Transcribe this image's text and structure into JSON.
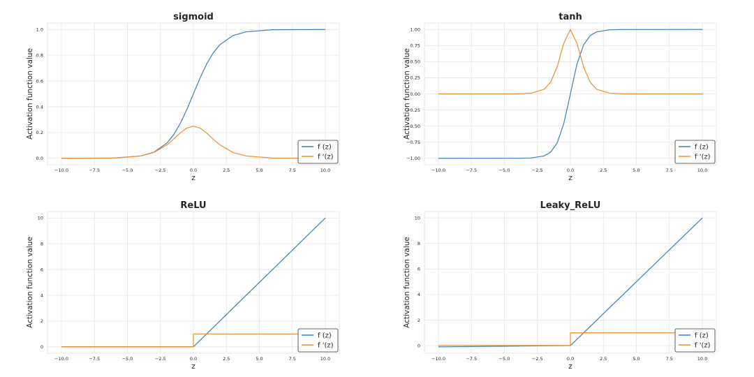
{
  "colors": {
    "f": "#3b7fbf",
    "fprime": "#f28c28",
    "grid": "#e4e4e4",
    "text": "#262626"
  },
  "chart_data": [
    {
      "type": "line",
      "title": "sigmoid",
      "xlabel": "z",
      "ylabel": "Activation function value",
      "xlim": [
        -10,
        10
      ],
      "ylim": [
        -0.05,
        1.05
      ],
      "xticks": [
        -10,
        -7.5,
        -5,
        -2.5,
        0,
        2.5,
        5,
        7.5,
        10
      ],
      "xtick_labels": [
        "−10.0",
        "−7.5",
        "−5.0",
        "−2.5",
        "0.0",
        "2.5",
        "5.0",
        "7.5",
        "10.0"
      ],
      "yticks": [
        0,
        0.2,
        0.4,
        0.6,
        0.8,
        1.0
      ],
      "ytick_labels": [
        "0.0",
        "0.2",
        "0.4",
        "0.6",
        "0.8",
        "1.0"
      ],
      "grid": true,
      "legend_position": "lower-right",
      "series": [
        {
          "name": "f (z)",
          "color": "#3b7fbf",
          "x": [
            -10,
            -6,
            -4,
            -3,
            -2,
            -1.5,
            -1,
            -0.5,
            0,
            0.5,
            1,
            1.5,
            2,
            3,
            4,
            6,
            10
          ],
          "y": [
            0.0,
            0.002,
            0.018,
            0.047,
            0.119,
            0.182,
            0.269,
            0.378,
            0.5,
            0.622,
            0.731,
            0.818,
            0.881,
            0.953,
            0.982,
            0.998,
            1.0
          ]
        },
        {
          "name": "f '(z)",
          "color": "#f28c28",
          "x": [
            -10,
            -6,
            -4,
            -3,
            -2,
            -1.5,
            -1,
            -0.5,
            0,
            0.5,
            1,
            1.5,
            2,
            3,
            4,
            6,
            10
          ],
          "y": [
            0.0,
            0.002,
            0.018,
            0.045,
            0.105,
            0.149,
            0.197,
            0.235,
            0.25,
            0.235,
            0.197,
            0.149,
            0.105,
            0.045,
            0.018,
            0.002,
            0.0
          ]
        }
      ]
    },
    {
      "type": "line",
      "title": "tanh",
      "xlabel": "z",
      "ylabel": "Activation function value",
      "xlim": [
        -10,
        10
      ],
      "ylim": [
        -1.1,
        1.1
      ],
      "xticks": [
        -10,
        -7.5,
        -5,
        -2.5,
        0,
        2.5,
        5,
        7.5,
        10
      ],
      "xtick_labels": [
        "−10.0",
        "−7.5",
        "−5.0",
        "−2.5",
        "0.0",
        "2.5",
        "5.0",
        "7.5",
        "10.0"
      ],
      "yticks": [
        -1.0,
        -0.75,
        -0.5,
        -0.25,
        0,
        0.25,
        0.5,
        0.75,
        1.0
      ],
      "ytick_labels": [
        "−1.00",
        "−0.75",
        "−0.50",
        "−0.25",
        "0.00",
        "0.25",
        "0.50",
        "0.75",
        "1.00"
      ],
      "grid": true,
      "legend_position": "lower-right",
      "series": [
        {
          "name": "f (z)",
          "color": "#3b7fbf",
          "x": [
            -10,
            -4,
            -3,
            -2,
            -1.5,
            -1,
            -0.5,
            0,
            0.5,
            1,
            1.5,
            2,
            3,
            4,
            10
          ],
          "y": [
            -1.0,
            -0.999,
            -0.995,
            -0.964,
            -0.905,
            -0.762,
            -0.462,
            0.0,
            0.462,
            0.762,
            0.905,
            0.964,
            0.995,
            0.999,
            1.0
          ]
        },
        {
          "name": "f '(z)",
          "color": "#f28c28",
          "x": [
            -10,
            -4,
            -3,
            -2,
            -1.5,
            -1,
            -0.5,
            0,
            0.5,
            1,
            1.5,
            2,
            3,
            4,
            10
          ],
          "y": [
            0.0,
            0.001,
            0.01,
            0.071,
            0.181,
            0.42,
            0.786,
            1.0,
            0.786,
            0.42,
            0.181,
            0.071,
            0.01,
            0.001,
            0.0
          ]
        }
      ]
    },
    {
      "type": "line",
      "title": "ReLU",
      "xlabel": "z",
      "ylabel": "Activation function value",
      "xlim": [
        -10,
        10
      ],
      "ylim": [
        -0.5,
        10.5
      ],
      "xticks": [
        -10,
        -7.5,
        -5,
        -2.5,
        0,
        2.5,
        5,
        7.5,
        10
      ],
      "xtick_labels": [
        "−10.0",
        "−7.5",
        "−5.0",
        "−2.5",
        "0.0",
        "2.5",
        "5.0",
        "7.5",
        "10.0"
      ],
      "yticks": [
        0,
        2,
        4,
        6,
        8,
        10
      ],
      "ytick_labels": [
        "0",
        "2",
        "4",
        "6",
        "8",
        "10"
      ],
      "grid": true,
      "legend_position": "lower-right",
      "series": [
        {
          "name": "f (z)",
          "color": "#3b7fbf",
          "x": [
            -10,
            0,
            10
          ],
          "y": [
            0,
            0,
            10
          ]
        },
        {
          "name": "f '(z)",
          "color": "#f28c28",
          "x": [
            -10,
            0,
            0,
            10
          ],
          "y": [
            0,
            0,
            1,
            1
          ]
        }
      ]
    },
    {
      "type": "line",
      "title": "Leaky_ReLU",
      "xlabel": "z",
      "ylabel": "Activation function value",
      "xlim": [
        -10,
        10
      ],
      "ylim": [
        -0.6,
        10.5
      ],
      "xticks": [
        -10,
        -7.5,
        -5,
        -2.5,
        0,
        2.5,
        5,
        7.5,
        10
      ],
      "xtick_labels": [
        "−10.0",
        "−7.5",
        "−5.0",
        "−2.5",
        "0.0",
        "2.5",
        "5.0",
        "7.5",
        "10.0"
      ],
      "yticks": [
        0,
        2,
        4,
        6,
        8,
        10
      ],
      "ytick_labels": [
        "0",
        "2",
        "4",
        "6",
        "8",
        "10"
      ],
      "grid": true,
      "legend_position": "lower-right",
      "series": [
        {
          "name": "f (z)",
          "color": "#3b7fbf",
          "x": [
            -10,
            0,
            10
          ],
          "y": [
            -0.1,
            0,
            10
          ]
        },
        {
          "name": "f '(z)",
          "color": "#f28c28",
          "x": [
            -10,
            0,
            0,
            10
          ],
          "y": [
            0.01,
            0.01,
            1,
            1
          ]
        }
      ]
    }
  ]
}
